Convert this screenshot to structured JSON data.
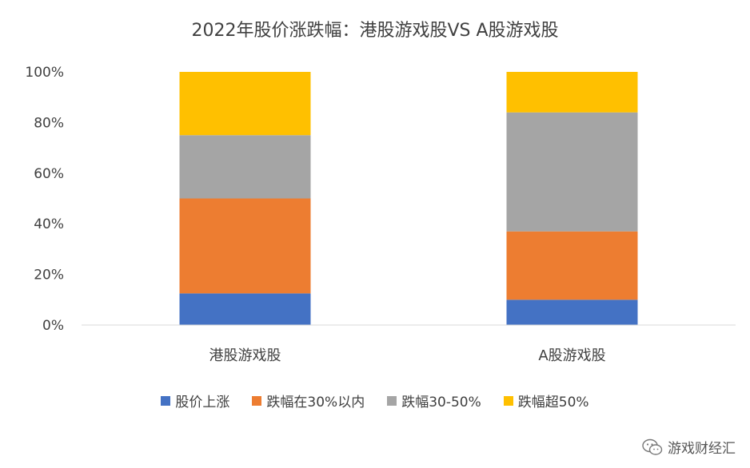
{
  "chart_data": {
    "type": "bar",
    "stacked": true,
    "title": "2022年股价涨跌幅：港股游戏股VS A股游戏股",
    "categories": [
      "港股游戏股",
      "A股游戏股"
    ],
    "series": [
      {
        "name": "股价上涨",
        "color": "#4472C4",
        "values": [
          12.5,
          10
        ]
      },
      {
        "name": "跌幅在30%以内",
        "color": "#ED7D31",
        "values": [
          37.5,
          27
        ]
      },
      {
        "name": "跌幅30-50%",
        "color": "#A5A5A5",
        "values": [
          25,
          47
        ]
      },
      {
        "name": "跌幅超50%",
        "color": "#FFC000",
        "values": [
          25,
          16
        ]
      }
    ],
    "yticks": [
      "0%",
      "20%",
      "40%",
      "60%",
      "80%",
      "100%"
    ],
    "ylim": [
      0,
      100
    ],
    "legend_position": "bottom",
    "grid": false
  },
  "watermark": {
    "text": "游戏财经汇",
    "icon": "wechat-icon"
  }
}
